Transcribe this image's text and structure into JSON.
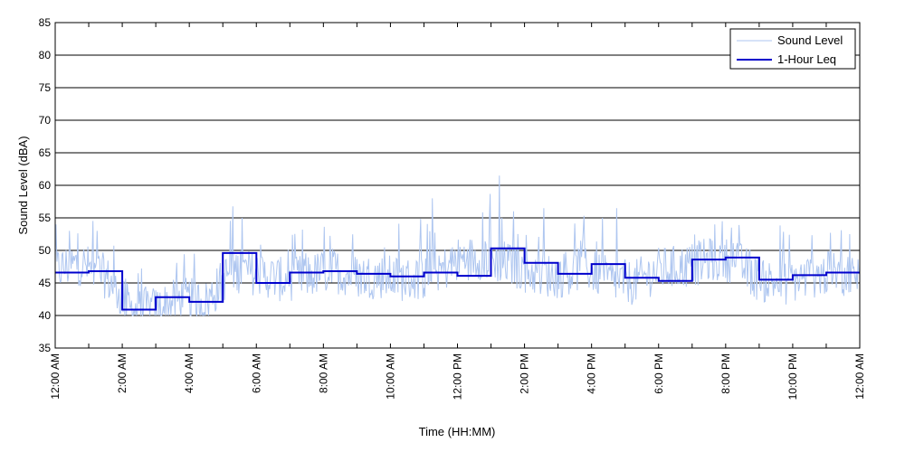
{
  "chart_data": {
    "type": "line",
    "title": "",
    "xlabel": "Time (HH:MM)",
    "ylabel": "Sound Level (dBA)",
    "ylim": [
      35,
      85
    ],
    "yticks": [
      35,
      40,
      45,
      50,
      55,
      60,
      65,
      70,
      75,
      80,
      85
    ],
    "xlim": [
      "12:00 AM",
      "12:00 AM"
    ],
    "xtick_labels": [
      "12:00 AM",
      "2:00 AM",
      "4:00 AM",
      "6:00 AM",
      "8:00 AM",
      "10:00 AM",
      "12:00 PM",
      "2:00 PM",
      "4:00 PM",
      "6:00 PM",
      "8:00 PM",
      "10:00 PM",
      "12:00 AM"
    ],
    "grid": "horizontal",
    "legend_position": "top-right",
    "colors": {
      "sound_level": "#aec6f0",
      "leq": "#0000cc"
    },
    "series": [
      {
        "name": "Sound Level",
        "style": "thin",
        "hours_base": [
          47,
          48,
          46,
          41,
          41,
          42.5,
          42,
          47,
          46.5,
          45.5,
          46,
          47,
          46,
          46,
          45.5,
          46,
          48.5,
          49,
          48,
          46.5,
          46,
          47.5,
          45.5,
          45,
          47,
          47.5,
          48.5,
          48.5,
          45.5,
          45,
          46,
          46.5,
          46
        ],
        "spikes": [
          {
            "time": "1:15 AM",
            "value": 53
          },
          {
            "time": "5:35 AM",
            "value": 55
          },
          {
            "time": "11:15 AM",
            "value": 58
          },
          {
            "time": "1:15 PM",
            "value": 61.5
          },
          {
            "time": "1:40 PM",
            "value": 56
          },
          {
            "time": "2:35 PM",
            "value": 56.5
          },
          {
            "time": "4:20 PM",
            "value": 55
          },
          {
            "time": "4:45 PM",
            "value": 56.5
          },
          {
            "time": "7:40 PM",
            "value": 54
          },
          {
            "time": "8:10 PM",
            "value": 53.5
          }
        ]
      },
      {
        "name": "1-Hour Leq",
        "style": "step",
        "hours": [
          "12:00 AM",
          "1:00 AM",
          "2:00 AM",
          "3:00 AM",
          "4:00 AM",
          "5:00 AM",
          "6:00 AM",
          "7:00 AM",
          "8:00 AM",
          "9:00 AM",
          "10:00 AM",
          "11:00 AM",
          "12:00 PM",
          "1:00 PM",
          "2:00 PM",
          "3:00 PM",
          "4:00 PM",
          "5:00 PM",
          "6:00 PM",
          "7:00 PM",
          "8:00 PM",
          "9:00 PM",
          "10:00 PM",
          "11:00 PM"
        ],
        "values": [
          46.6,
          46.8,
          40.9,
          42.8,
          42.1,
          49.6,
          45.0,
          46.6,
          46.8,
          46.4,
          46.0,
          46.6,
          46.1,
          50.3,
          48.1,
          46.4,
          47.9,
          45.8,
          45.3,
          48.6,
          48.9,
          45.5,
          46.2,
          46.6
        ]
      }
    ]
  }
}
